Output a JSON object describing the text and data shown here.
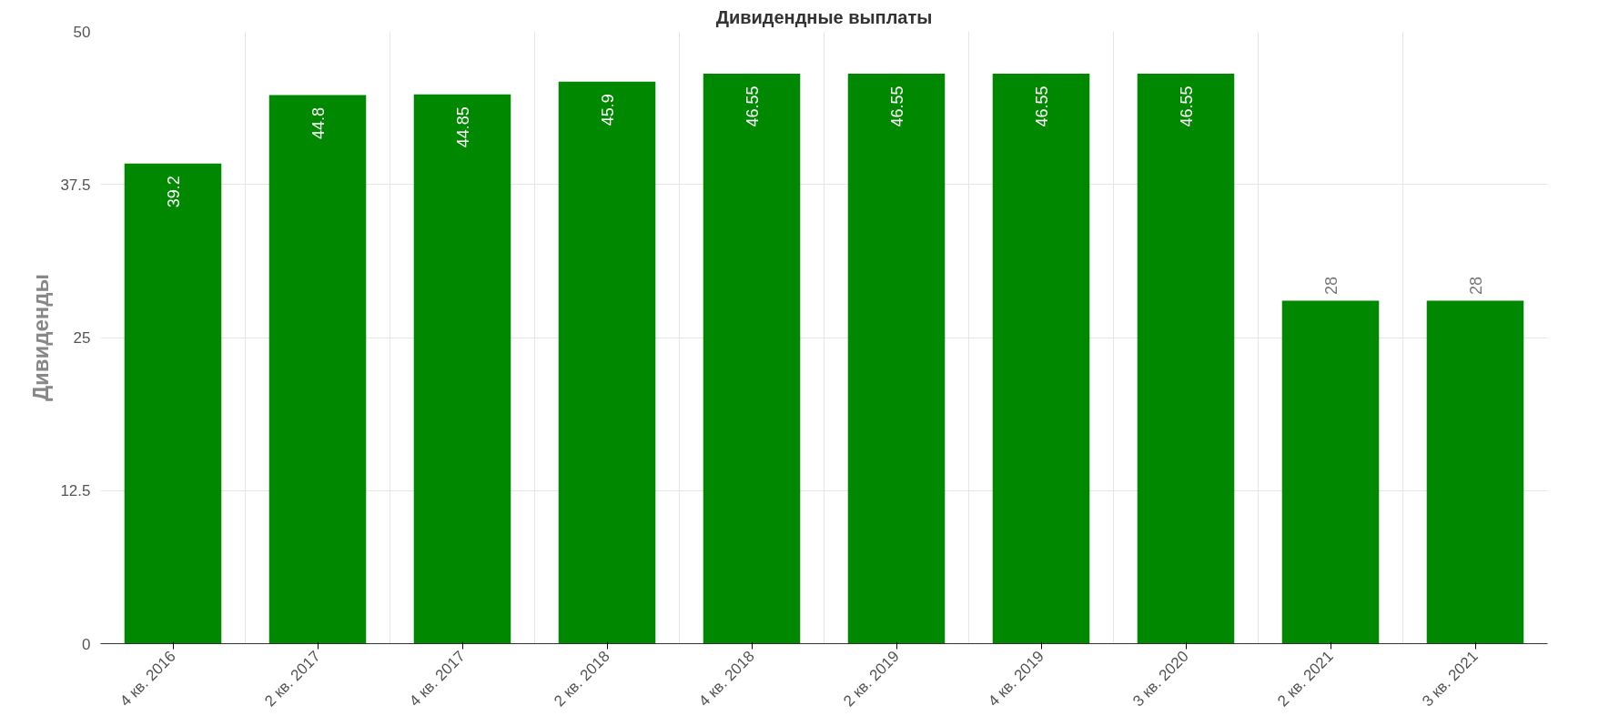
{
  "chart_data": {
    "type": "bar",
    "title": "Дивидендные выплаты",
    "ylabel": "Дивиденды",
    "categories": [
      "4 кв. 2016",
      "2 кв. 2017",
      "4 кв. 2017",
      "2 кв. 2018",
      "4 кв. 2018",
      "2 кв. 2019",
      "4 кв. 2019",
      "3 кв. 2020",
      "2 кв. 2021",
      "3 кв. 2021"
    ],
    "values": [
      39.2,
      44.8,
      44.85,
      45.9,
      46.55,
      46.55,
      46.55,
      46.55,
      28,
      28
    ],
    "color": "#008800",
    "ylim": [
      0,
      50
    ],
    "yticks": [
      0,
      12.5,
      25,
      37.5,
      50
    ],
    "grid": true,
    "data_labels": true
  }
}
